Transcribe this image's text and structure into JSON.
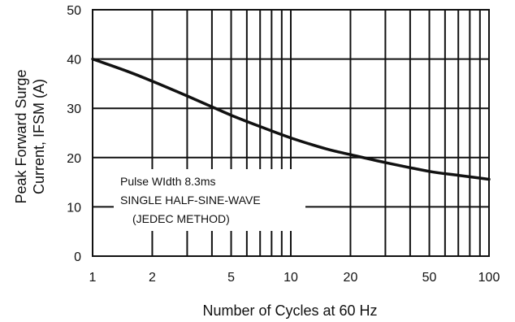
{
  "chart_data": {
    "type": "line",
    "xlabel": "Number of Cycles at 60 Hz",
    "ylabel_lines": [
      "Peak Forward Surge",
      "Current, IFSM (A)"
    ],
    "x_scale": "log",
    "xlim": [
      1,
      100
    ],
    "ylim": [
      0,
      50
    ],
    "grid": true,
    "x_tick_labels": [
      "1",
      "2",
      "5",
      "10",
      "20",
      "50",
      "100"
    ],
    "y_tick_labels": [
      "0",
      "10",
      "20",
      "30",
      "40",
      "50"
    ],
    "series": [
      {
        "x": [
          1,
          1.5,
          2,
          3,
          4,
          5,
          7,
          10,
          15,
          20,
          30,
          50,
          70,
          100
        ],
        "y": [
          40,
          37.5,
          35.5,
          32.5,
          30.3,
          28.6,
          26.3,
          24.0,
          21.8,
          20.6,
          19.0,
          17.2,
          16.4,
          15.6
        ]
      }
    ],
    "annotation_lines": [
      "Pulse WIdth 8.3ms",
      "SINGLE HALF-SINE-WAVE",
      "(JEDEC METHOD)"
    ],
    "line_color": "#111111"
  }
}
